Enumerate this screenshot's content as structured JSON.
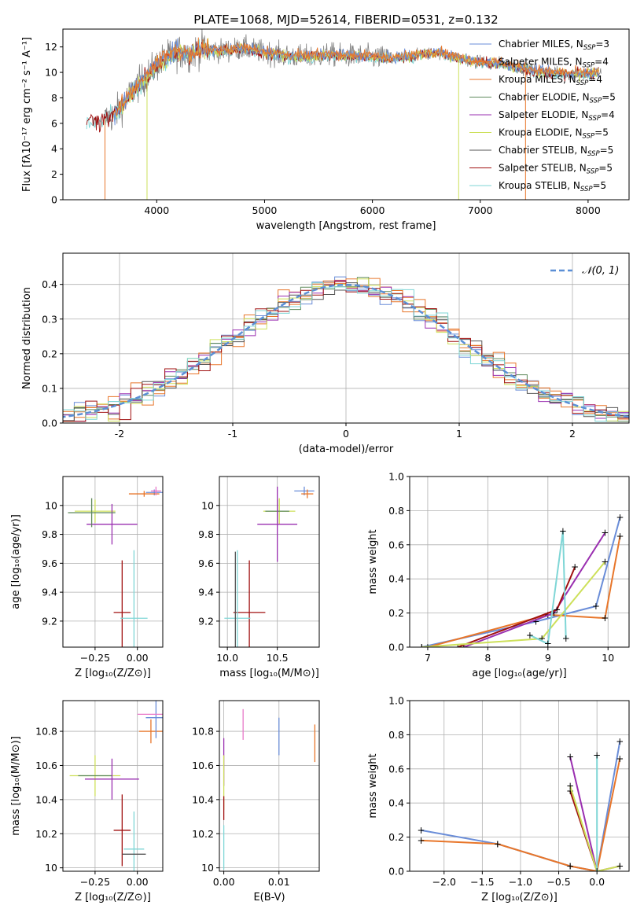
{
  "colors": {
    "chab_miles": "#6a8dd8",
    "salp_miles": "#e8762a",
    "krou_miles": "#e8762a",
    "chab_elodie": "#5f8a5c",
    "salp_elodie": "#9a2fb0",
    "krou_elodie": "#cde05a",
    "chab_stelib": "#555555",
    "salp_stelib": "#a01010",
    "krou_stelib": "#7fd6d6",
    "pink": "#e878c8",
    "gauss": "#5b8fd6"
  },
  "spectrum": {
    "title": "PLATE=1068, MJD=52614, FIBERID=0531, z=0.132",
    "xlabel": "wavelength [Angstrom, rest frame]",
    "ylabel": "Flux [fλ10⁻¹⁷ erg cm⁻² s⁻¹ A⁻¹]",
    "xlim": [
      3130,
      8380
    ],
    "ylim": [
      0,
      13.4
    ],
    "xticks": [
      4000,
      5000,
      6000,
      7000,
      8000
    ],
    "yticks": [
      0,
      2,
      4,
      6,
      8,
      10,
      12
    ],
    "legend": [
      {
        "label": "Chabrier MILES, N",
        "sub": "SSP",
        "val": "=3",
        "color": "chab_miles"
      },
      {
        "label": "Salpeter MILES, N",
        "sub": "SSP",
        "val": "=4",
        "color": "salp_miles"
      },
      {
        "label": "Kroupa MILES, N",
        "sub": "SSP",
        "val": "=4",
        "color": "krou_miles"
      },
      {
        "label": "Chabrier ELODIE, N",
        "sub": "SSP",
        "val": "=5",
        "color": "chab_elodie"
      },
      {
        "label": "Salpeter ELODIE, N",
        "sub": "SSP",
        "val": "=4",
        "color": "salp_elodie"
      },
      {
        "label": "Kroupa ELODIE, N",
        "sub": "SSP",
        "val": "=5",
        "color": "krou_elodie"
      },
      {
        "label": "Chabrier STELIB, N",
        "sub": "SSP",
        "val": "=5",
        "color": "chab_stelib"
      },
      {
        "label": "Salpeter STELIB, N",
        "sub": "SSP",
        "val": "=5",
        "color": "salp_stelib"
      },
      {
        "label": "Kroupa STELIB, N",
        "sub": "SSP",
        "val": "=5",
        "color": "krou_stelib"
      }
    ]
  },
  "chart_data": [
    {
      "type": "line",
      "title": "PLATE=1068, MJD=52614, FIBERID=0531, z=0.132",
      "xlabel": "wavelength [Angstrom, rest frame]",
      "xlim": [
        3130,
        8380
      ],
      "ylim": [
        0,
        13.4
      ],
      "continuum_x": [
        3350,
        3500,
        3600,
        3700,
        3800,
        3900,
        4000,
        4100,
        4200,
        4300,
        4400,
        4600,
        4800,
        5000,
        5200,
        5400,
        5600,
        5800,
        6000,
        6200,
        6400,
        6600,
        6800,
        7000,
        7200,
        7400,
        7600,
        7800,
        8000,
        8100
      ],
      "continuum_y": [
        6.1,
        6.3,
        6.6,
        7.6,
        8.8,
        9.6,
        10.6,
        11.2,
        11.6,
        11.4,
        11.8,
        11.7,
        11.9,
        11.6,
        11.3,
        11.2,
        11.4,
        11.3,
        11.2,
        11.1,
        11.3,
        11.6,
        11.1,
        10.8,
        10.7,
        10.3,
        10.0,
        9.9,
        9.9,
        10.0
      ]
    },
    {
      "type": "bar",
      "xlabel": "(data-model)/error",
      "ylabel": "Normed distribution",
      "xlim": [
        -2.5,
        2.5
      ],
      "ylim": [
        0,
        0.49
      ],
      "legend": "𝒩(0, 1)"
    },
    {
      "type": "scatter",
      "xlabel": "Z [log10(Z/Z⊙)]",
      "ylabel": "age  [log10(age/yr)]",
      "points": [
        {
          "x": 0.1,
          "y": 10.09,
          "xerr": 0.05,
          "yerr": 0.02,
          "color": "chab_miles"
        },
        {
          "x": 0.04,
          "y": 10.08,
          "xerr": 0.09,
          "yerr": 0.02,
          "color": "salp_miles"
        },
        {
          "x": -0.25,
          "y": 9.96,
          "xerr": 0.12,
          "yerr": 0.08,
          "color": "krou_elodie"
        },
        {
          "x": -0.15,
          "y": 9.87,
          "xerr": 0.15,
          "yerr": 0.14,
          "color": "salp_elodie"
        },
        {
          "x": -0.09,
          "y": 9.26,
          "xerr": 0.05,
          "yerr": 0.36,
          "color": "salp_stelib"
        },
        {
          "x": -0.02,
          "y": 9.22,
          "xerr": 0.08,
          "yerr": 0.47,
          "color": "krou_stelib"
        }
      ]
    },
    {
      "type": "scatter",
      "xlabel": "E(B-V)",
      "ylabel": "mass [log10(M/M⊙)]",
      "points": [
        {
          "x": 0.0,
          "y": 10.5
        },
        {
          "x": 0.0035,
          "y": 10.87
        },
        {
          "x": 0.01,
          "y": 10.77
        },
        {
          "x": 0.0165,
          "y": 10.73
        }
      ]
    }
  ],
  "hist": {
    "xlabel": "(data-model)/error",
    "ylabel": "Normed distribution",
    "xlim": [
      -2.5,
      2.5
    ],
    "ylim": [
      0,
      0.49
    ],
    "xticks": [
      -2,
      -1,
      0,
      1,
      2
    ],
    "yticks": [
      0.0,
      0.1,
      0.2,
      0.3,
      0.4
    ],
    "legend": "𝒩(0, 1)"
  },
  "p_za": {
    "xlabel": "Z [log₁₀(Z/Z⊙)]",
    "ylabel": "age  [log₁₀(age/yr)]",
    "xlim": [
      -0.44,
      0.15
    ],
    "ylim": [
      9.02,
      10.2
    ],
    "xticks": [
      -0.25,
      0.0
    ],
    "xticklabels": [
      "−0.25",
      "0.00"
    ],
    "yticks": [
      9.2,
      9.4,
      9.6,
      9.8,
      10.0
    ]
  },
  "p_ma": {
    "xlabel": "mass [log₁₀(M/M⊙)]",
    "ylabel": "",
    "xlim": [
      9.92,
      10.92
    ],
    "ylim": [
      9.02,
      10.2
    ],
    "xticks": [
      10.0,
      10.5
    ],
    "xticklabels": [
      "10.0",
      "10.5"
    ],
    "yticks": [
      9.2,
      9.4,
      9.6,
      9.8,
      10.0
    ]
  },
  "p_wa": {
    "xlabel": "age  [log₁₀(age/yr)]",
    "ylabel": "mass weight",
    "xlim": [
      6.7,
      10.35
    ],
    "ylim": [
      0,
      1.0
    ],
    "xticks": [
      7,
      8,
      9,
      10
    ],
    "yticks": [
      0.0,
      0.2,
      0.4,
      0.6,
      0.8,
      1.0
    ]
  },
  "p_zm": {
    "xlabel": "Z [log₁₀(Z/Z⊙)]",
    "ylabel": "mass [log₁₀(M/M⊙)]",
    "xlim": [
      -0.44,
      0.15
    ],
    "ylim": [
      9.98,
      10.98
    ],
    "xticks": [
      -0.25,
      0.0
    ],
    "xticklabels": [
      "−0.25",
      "0.00"
    ],
    "yticks": [
      10.0,
      10.2,
      10.4,
      10.6,
      10.8
    ]
  },
  "p_em": {
    "xlabel": "E(B-V)",
    "ylabel": "",
    "xlim": [
      -0.0008,
      0.0173
    ],
    "ylim": [
      9.98,
      10.98
    ],
    "xticks": [
      0.0,
      0.01
    ],
    "xticklabels": [
      "0.00",
      "0.01"
    ],
    "yticks": [
      10.0,
      10.2,
      10.4,
      10.6,
      10.8
    ]
  },
  "p_wz": {
    "xlabel": "Z [log₁₀(Z/Z⊙)]",
    "ylabel": "mass weight",
    "xlim": [
      -2.45,
      0.42
    ],
    "ylim": [
      0,
      1.0
    ],
    "xticks": [
      -2.0,
      -1.5,
      -1.0,
      -0.5,
      0.0
    ],
    "xticklabels": [
      "−2.0",
      "−1.5",
      "−1.0",
      "−0.5",
      "0.0"
    ],
    "yticks": [
      0.0,
      0.2,
      0.4,
      0.6,
      0.8,
      1.0
    ]
  }
}
